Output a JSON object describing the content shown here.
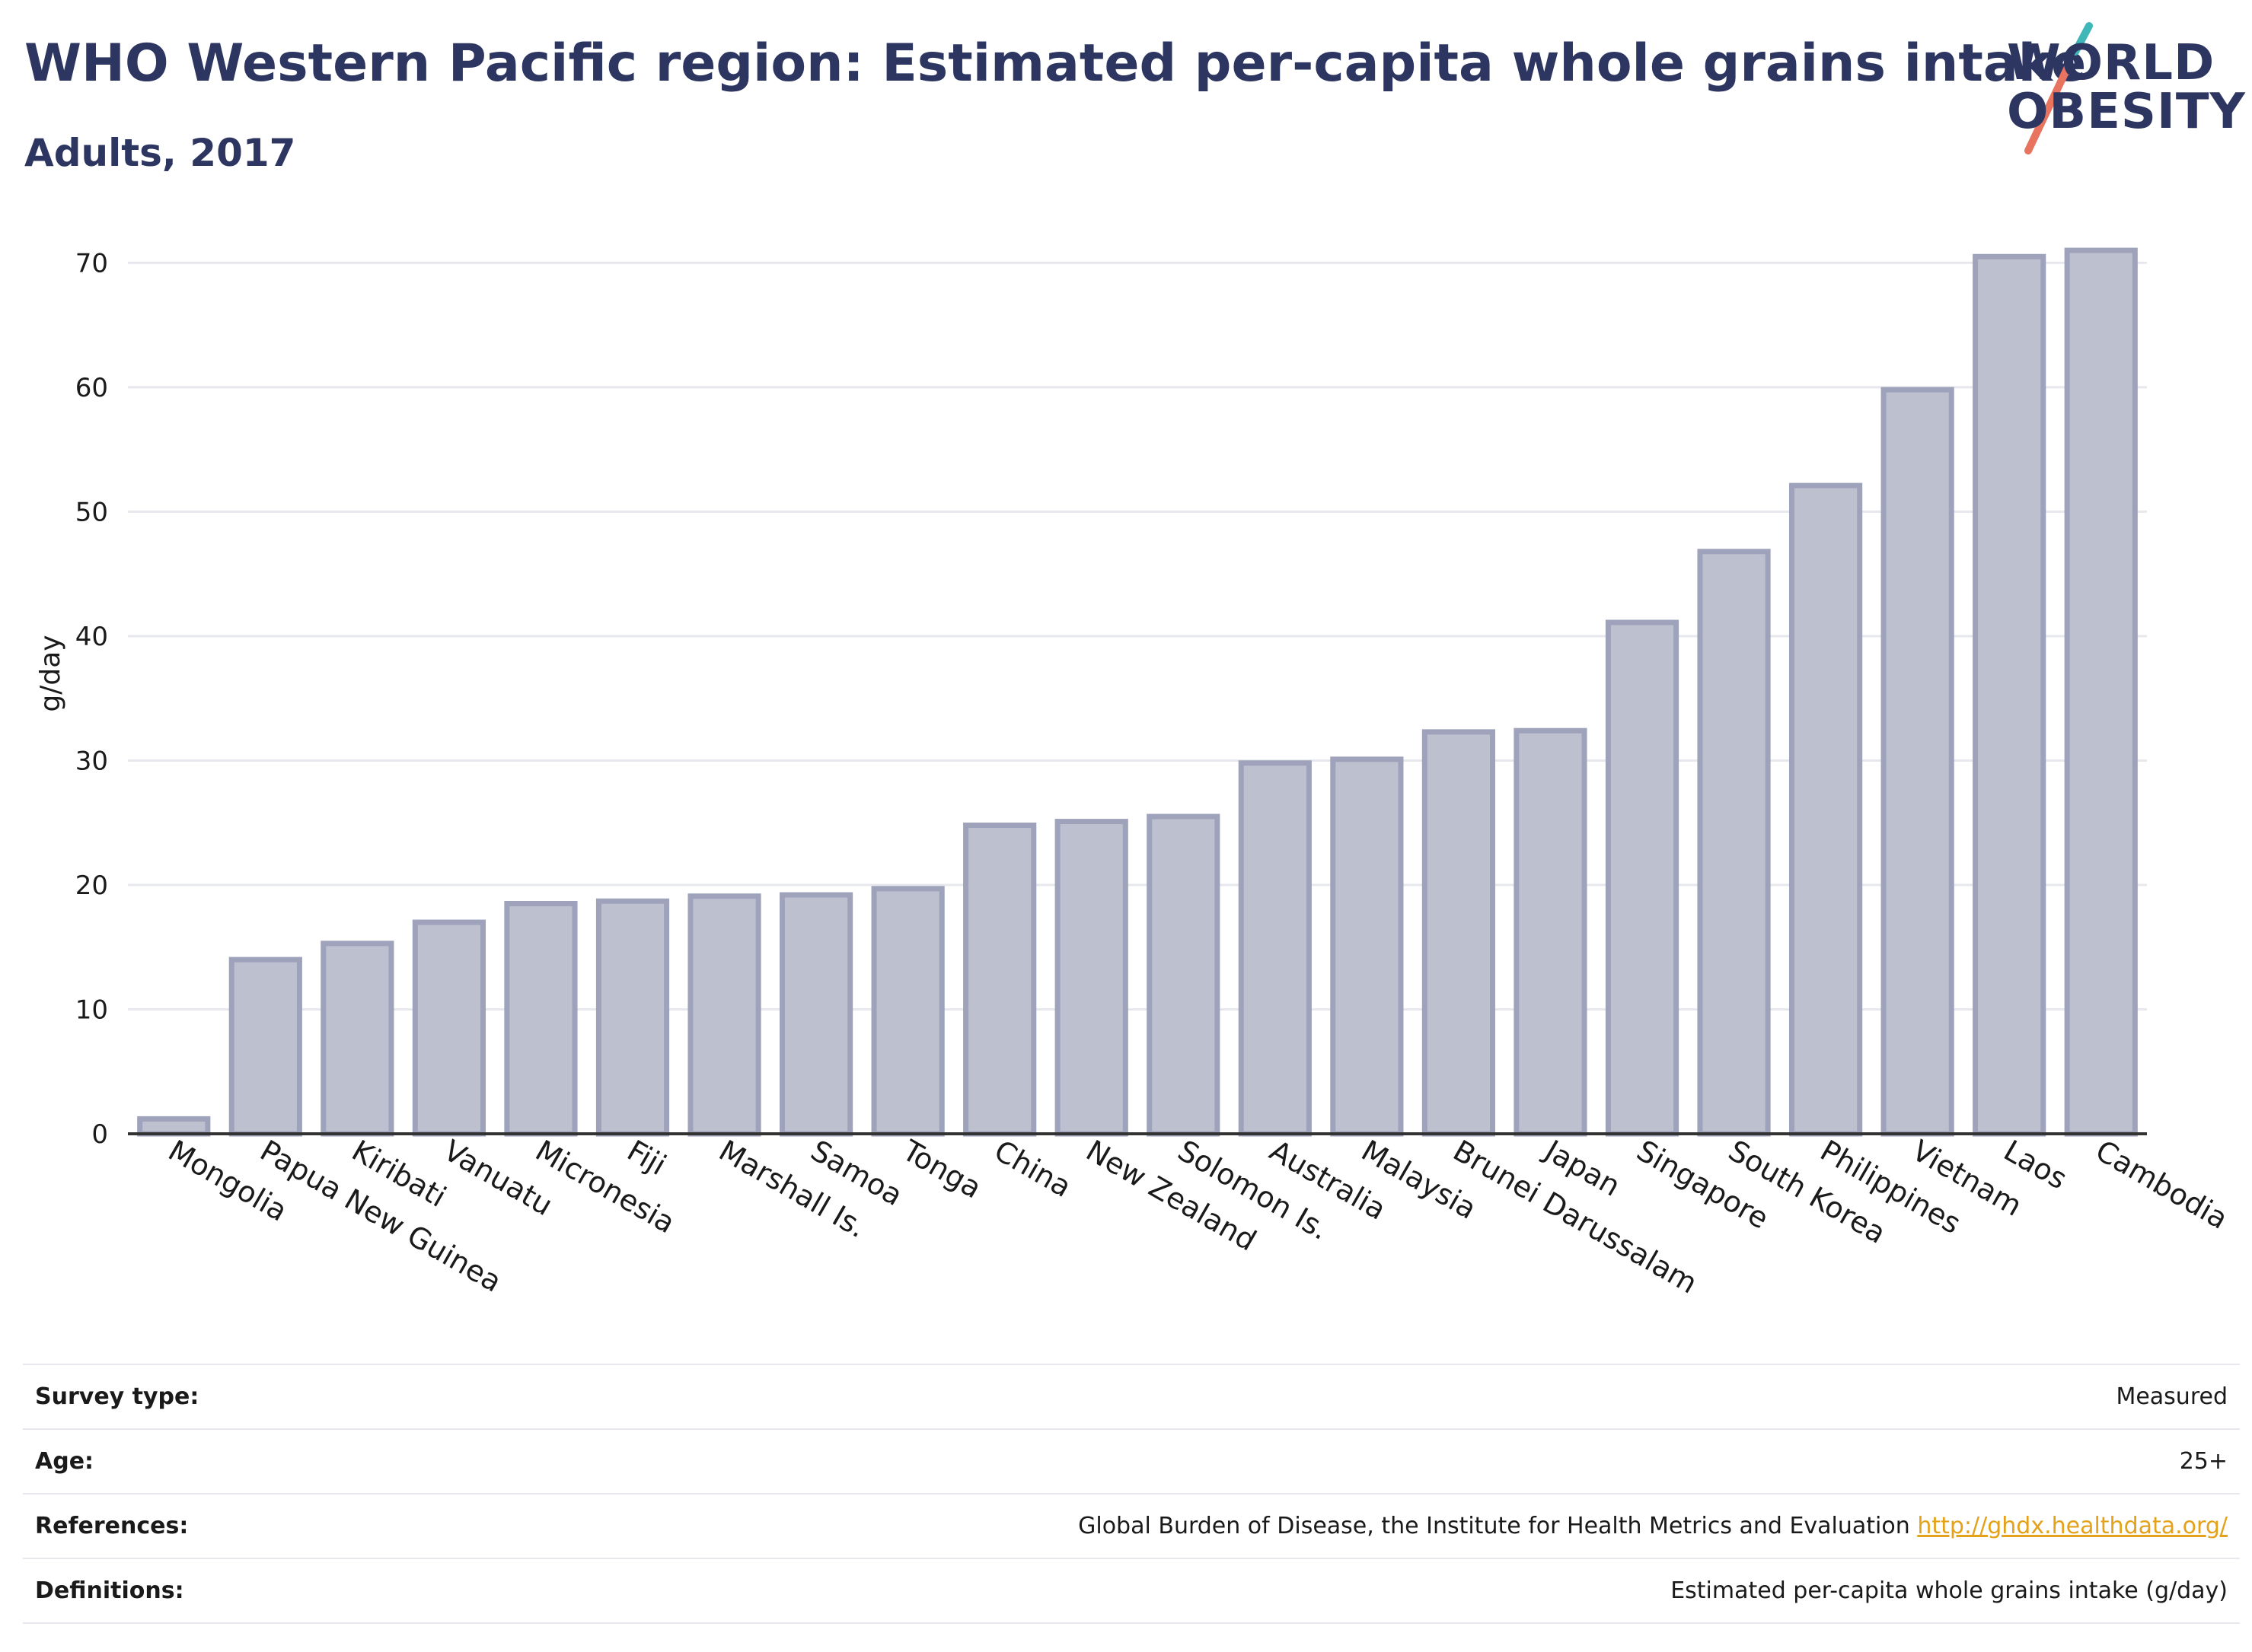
{
  "header": {
    "title": "WHO Western Pacific region: Estimated per-capita whole grains intake",
    "subtitle": "Adults, 2017"
  },
  "logo": {
    "line1": "WORLD",
    "line2": "OBESITY",
    "slash_colors": [
      "#3fb6b8",
      "#e8735f"
    ]
  },
  "chart_data": {
    "type": "bar",
    "categories": [
      "Mongolia",
      "Papua New Guinea",
      "Kiribati",
      "Vanuatu",
      "Micronesia",
      "Fiji",
      "Marshall Is.",
      "Samoa",
      "Tonga",
      "China",
      "New Zealand",
      "Solomon Is.",
      "Australia",
      "Malaysia",
      "Brunei Darussalam",
      "Japan",
      "Singapore",
      "South Korea",
      "Philippines",
      "Vietnam",
      "Laos",
      "Cambodia"
    ],
    "values": [
      1.2,
      14.0,
      15.3,
      17.0,
      18.5,
      18.7,
      19.1,
      19.2,
      19.7,
      24.8,
      25.1,
      25.5,
      29.8,
      30.1,
      32.3,
      32.4,
      41.1,
      46.8,
      52.1,
      59.8,
      70.5,
      71.0
    ],
    "title": "WHO Western Pacific region: Estimated per-capita whole grains intake",
    "subtitle": "Adults, 2017",
    "xlabel": "",
    "ylabel": "g/day",
    "ylim": [
      0,
      74
    ],
    "yticks": [
      0,
      10,
      20,
      30,
      40,
      50,
      60,
      70
    ],
    "grid": true,
    "colors": {
      "bar_fill": "#bdc0cf",
      "bar_stroke": "#9ea3bb",
      "axis": "#333333",
      "grid": "#e6e8ee"
    }
  },
  "metadata": {
    "rows": [
      {
        "key": "Survey type:",
        "value": "Measured"
      },
      {
        "key": "Age:",
        "value": "25+"
      },
      {
        "key": "References:",
        "value": "Global Burden of Disease, the Institute for Health Metrics and Evaluation",
        "link": "http://ghdx.healthdata.org/"
      },
      {
        "key": "Definitions:",
        "value": "Estimated per-capita whole grains intake (g/day)"
      }
    ]
  }
}
